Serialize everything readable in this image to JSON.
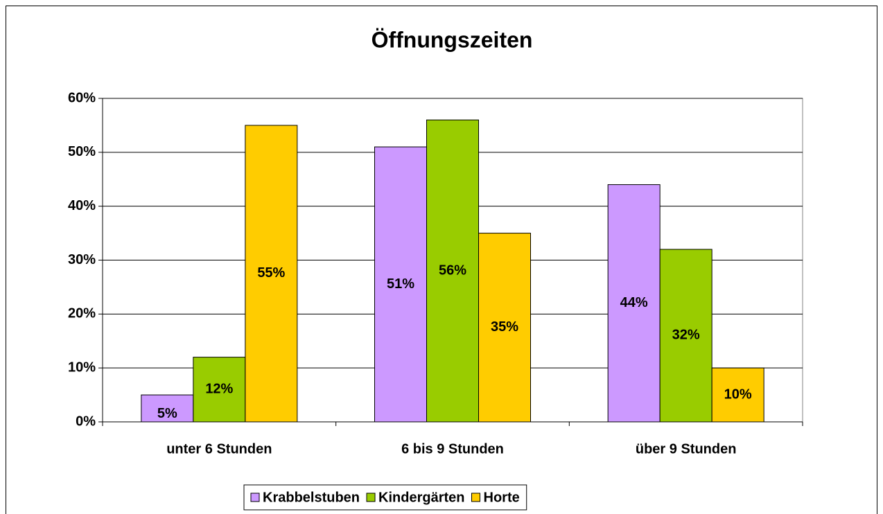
{
  "chart_data": {
    "type": "bar",
    "title": "Öffnungszeiten",
    "categories": [
      "unter 6 Stunden",
      "6 bis 9 Stunden",
      "über 9 Stunden"
    ],
    "series": [
      {
        "name": "Krabbelstuben",
        "color": "#cc99ff",
        "values": [
          5,
          51,
          44
        ],
        "value_labels": [
          "5%",
          "51%",
          "44%"
        ]
      },
      {
        "name": "Kindergärten",
        "color": "#99cc00",
        "values": [
          12,
          56,
          32
        ],
        "value_labels": [
          "12%",
          "56%",
          "32%"
        ]
      },
      {
        "name": "Horte",
        "color": "#ffcc00",
        "values": [
          55,
          35,
          10
        ],
        "value_labels": [
          "55%",
          "35%",
          "10%"
        ]
      }
    ],
    "ylim": [
      0,
      60
    ],
    "yticks": [
      {
        "value": 0,
        "label": "0%"
      },
      {
        "value": 10,
        "label": "10%"
      },
      {
        "value": 20,
        "label": "20%"
      },
      {
        "value": 30,
        "label": "30%"
      },
      {
        "value": 40,
        "label": "40%"
      },
      {
        "value": 50,
        "label": "50%"
      },
      {
        "value": 60,
        "label": "60%"
      }
    ],
    "grid": true,
    "legend": "bottom"
  }
}
